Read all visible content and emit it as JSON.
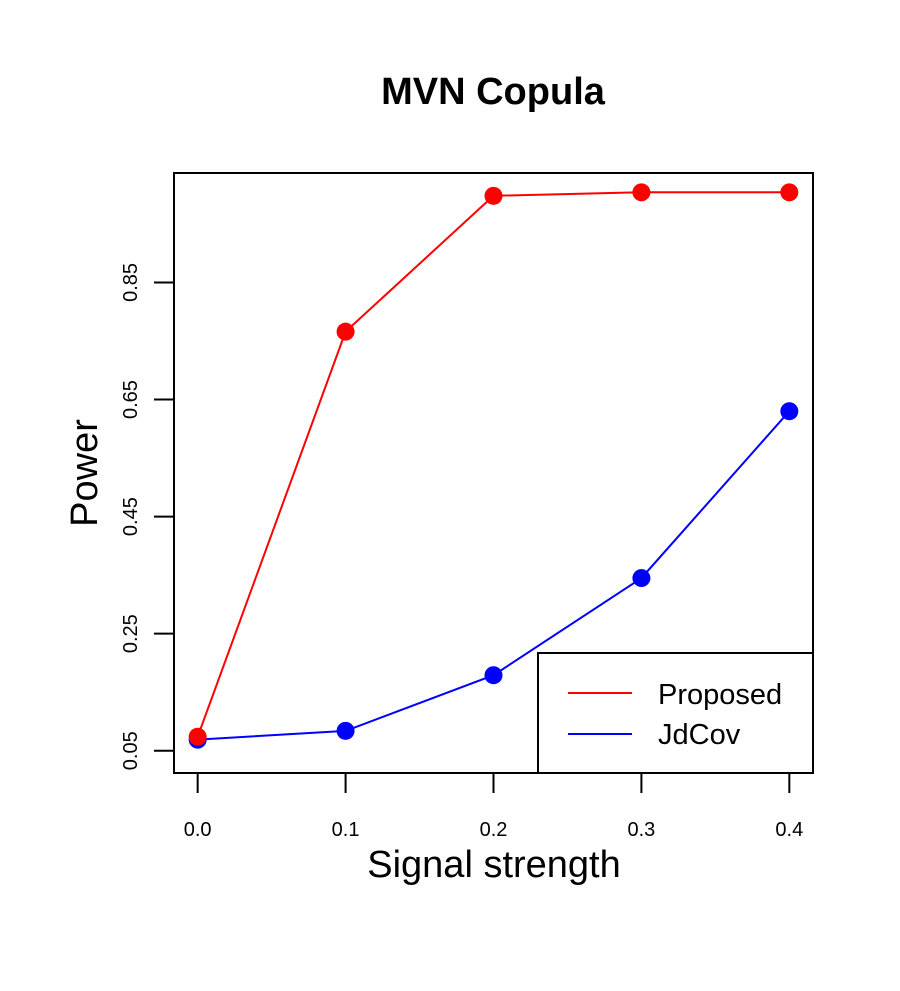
{
  "chart_data": {
    "type": "line",
    "title": "MVN Copula",
    "xlabel": "Signal strength",
    "ylabel": "Power",
    "x": [
      0.0,
      0.1,
      0.2,
      0.3,
      0.4
    ],
    "x_tick_labels": [
      "0.0",
      "0.1",
      "0.2",
      "0.3",
      "0.4"
    ],
    "y_ticks": [
      0.05,
      0.25,
      0.45,
      0.65,
      0.85
    ],
    "y_tick_labels": [
      "0.05",
      "0.25",
      "0.45",
      "0.65",
      "0.85"
    ],
    "xlim": [
      -0.016,
      0.416
    ],
    "ylim": [
      0.012,
      1.037
    ],
    "grid": false,
    "legend_position": "bottom-right",
    "series": [
      {
        "name": "Proposed",
        "color": "#ff0000",
        "values": [
          0.074,
          0.766,
          0.998,
          1.004,
          1.004
        ]
      },
      {
        "name": "JdCov",
        "color": "#0000ff",
        "values": [
          0.069,
          0.084,
          0.179,
          0.345,
          0.63
        ]
      }
    ]
  }
}
